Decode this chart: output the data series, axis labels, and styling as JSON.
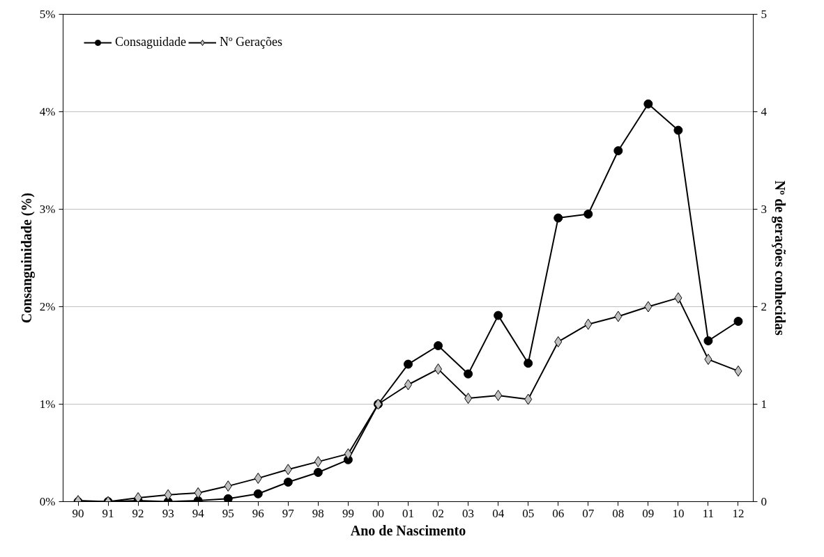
{
  "chart_data": {
    "type": "line",
    "xlabel": "Ano de Nascimento",
    "ylabel": "Consanguinidade (%)",
    "y2label": "Nº de gerações conhecidas",
    "categories": [
      "90",
      "91",
      "92",
      "93",
      "94",
      "95",
      "96",
      "97",
      "98",
      "99",
      "00",
      "01",
      "02",
      "03",
      "04",
      "05",
      "06",
      "07",
      "08",
      "09",
      "10",
      "11",
      "12"
    ],
    "series": [
      {
        "name": "Consaguidade",
        "color": "#000000",
        "marker": "circle",
        "values": [
          0,
          0,
          0.01,
          0,
          0.01,
          0.03,
          0.08,
          0.2,
          0.3,
          0.43,
          1.0,
          1.41,
          1.6,
          1.31,
          1.91,
          1.42,
          2.91,
          2.95,
          3.6,
          4.08,
          3.81,
          1.65,
          1.85
        ]
      },
      {
        "name": "Nº Gerações",
        "color": "#000000",
        "marker": "diamond",
        "axis": "y2",
        "values": [
          0.01,
          0,
          0.04,
          0.07,
          0.09,
          0.16,
          0.24,
          0.33,
          0.41,
          0.49,
          1.0,
          1.2,
          1.36,
          1.06,
          1.09,
          1.05,
          1.64,
          1.82,
          1.9,
          2.0,
          2.09,
          1.46,
          1.34
        ]
      }
    ],
    "ylim": [
      0,
      5
    ],
    "yticks": [
      {
        "value": 0,
        "label": "0%"
      },
      {
        "value": 1,
        "label": "1%"
      },
      {
        "value": 2,
        "label": "2%"
      },
      {
        "value": 3,
        "label": "3%"
      },
      {
        "value": 4,
        "label": "4%"
      },
      {
        "value": 5,
        "label": "5%"
      }
    ],
    "y2lim": [
      0,
      5
    ],
    "y2ticks": [
      0,
      1,
      2,
      3,
      4,
      5
    ],
    "grid": "y",
    "legend": "top left",
    "line_style": "solid"
  }
}
